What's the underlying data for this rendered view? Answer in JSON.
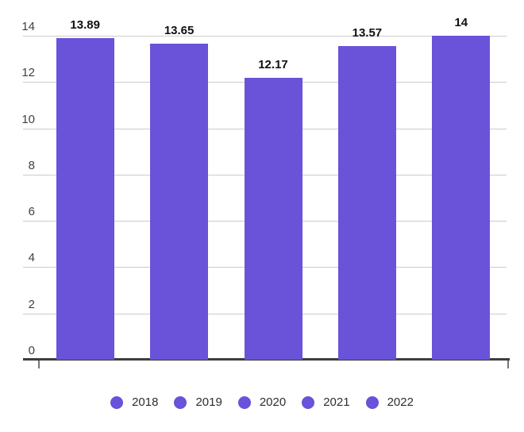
{
  "chart_data": {
    "type": "bar",
    "categories": [
      "2018",
      "2019",
      "2020",
      "2021",
      "2022"
    ],
    "values": [
      13.89,
      13.65,
      12.17,
      13.57,
      14
    ],
    "value_labels": [
      "13.89",
      "13.65",
      "12.17",
      "13.57",
      "14"
    ],
    "title": "",
    "xlabel": "",
    "ylabel": "",
    "ylim": [
      0,
      14
    ],
    "yticks": [
      0,
      2,
      4,
      6,
      8,
      10,
      12,
      14
    ],
    "ytick_labels": [
      "0",
      "2",
      "4",
      "6",
      "8",
      "10",
      "12",
      "14"
    ],
    "grid": true,
    "legend_position": "bottom",
    "colors": {
      "bar": "#6A52D9",
      "gridline": "#cccccc",
      "axis_baseline": "#3d3d3d",
      "axis_tick": "#757575",
      "y_label_text": "#404040",
      "value_label_text": "#101010",
      "legend_text": "#2e2e2e",
      "background": "#ffffff"
    }
  }
}
